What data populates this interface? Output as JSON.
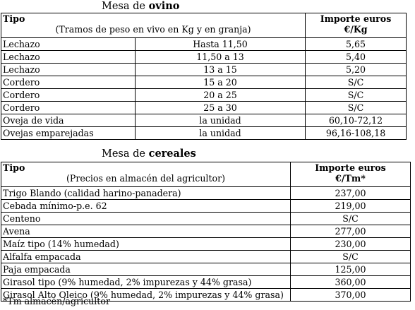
{
  "ovino": {
    "title_prefix": "Mesa de ",
    "title_bold": "ovino",
    "header": {
      "tipo": "Tipo",
      "subtitle": "(Tramos de peso en vivo en Kg y en granja)",
      "importe_line1": "Importe euros",
      "importe_line2": "€/Kg"
    },
    "rows": [
      {
        "tipo": "Lechazo",
        "tramo": "Hasta 11,50",
        "importe": "5,65"
      },
      {
        "tipo": "Lechazo",
        "tramo": "11,50 a 13",
        "importe": "5,40"
      },
      {
        "tipo": "Lechazo",
        "tramo": "13 a 15",
        "importe": "5,20"
      },
      {
        "tipo": "Cordero",
        "tramo": "15 a 20",
        "importe": "S/C"
      },
      {
        "tipo": "Cordero",
        "tramo": "20 a 25",
        "importe": "S/C"
      },
      {
        "tipo": "Cordero",
        "tramo": "25 a 30",
        "importe": "S/C"
      },
      {
        "tipo": "Oveja de vida",
        "tramo": "la unidad",
        "importe": "60,10-72,12"
      },
      {
        "tipo": "Ovejas emparejadas",
        "tramo": "la unidad",
        "importe": "96,16-108,18"
      }
    ]
  },
  "cereales": {
    "title_prefix": "Mesa de ",
    "title_bold": "cereales",
    "header": {
      "tipo": "Tipo",
      "subtitle": "(Precios en almacén del agricultor)",
      "importe_line1": "Importe euros",
      "importe_line2": "€/Tm*"
    },
    "rows": [
      {
        "tipo": "Trigo Blando (calidad harino-panadera)",
        "importe": "237,00"
      },
      {
        "tipo": "Cebada mínimo-p.e. 62",
        "importe": "219,00"
      },
      {
        "tipo": "Centeno",
        "importe": "S/C"
      },
      {
        "tipo": "Avena",
        "importe": "277,00"
      },
      {
        "tipo": "Maíz tipo (14% humedad)",
        "importe": "230,00"
      },
      {
        "tipo": "Alfalfa empacada",
        "importe": "S/C"
      },
      {
        "tipo": "Paja empacada",
        "importe": "125,00"
      },
      {
        "tipo": "Girasol tipo (9% humedad, 2% impurezas y 44% grasa)",
        "importe": "360,00"
      },
      {
        "tipo": "Girasol Alto Oleico (9% humedad, 2% impurezas y 44% grasa)",
        "importe": "370,00"
      }
    ]
  },
  "footnote": "*Tm almacén/agricultor"
}
